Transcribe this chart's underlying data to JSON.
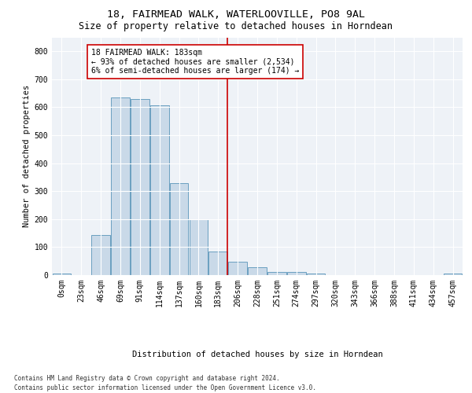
{
  "title": "18, FAIRMEAD WALK, WATERLOOVILLE, PO8 9AL",
  "subtitle": "Size of property relative to detached houses in Horndean",
  "xlabel_bottom": "Distribution of detached houses by size in Horndean",
  "ylabel": "Number of detached properties",
  "footnote1": "Contains HM Land Registry data © Crown copyright and database right 2024.",
  "footnote2": "Contains public sector information licensed under the Open Government Licence v3.0.",
  "bar_labels": [
    "0sqm",
    "23sqm",
    "46sqm",
    "69sqm",
    "91sqm",
    "114sqm",
    "137sqm",
    "160sqm",
    "183sqm",
    "206sqm",
    "228sqm",
    "251sqm",
    "274sqm",
    "297sqm",
    "320sqm",
    "343sqm",
    "366sqm",
    "388sqm",
    "411sqm",
    "434sqm",
    "457sqm"
  ],
  "bar_values": [
    5,
    0,
    143,
    636,
    630,
    608,
    330,
    200,
    83,
    48,
    28,
    10,
    10,
    5,
    0,
    0,
    0,
    0,
    0,
    0,
    5
  ],
  "bar_color": "#c9d9e8",
  "bar_edge_color": "#6a9fc0",
  "highlight_line_color": "#cc0000",
  "annotation_text": "18 FAIRMEAD WALK: 183sqm\n← 93% of detached houses are smaller (2,534)\n6% of semi-detached houses are larger (174) →",
  "annotation_box_color": "#cc0000",
  "ylim": [
    0,
    850
  ],
  "yticks": [
    0,
    100,
    200,
    300,
    400,
    500,
    600,
    700,
    800
  ],
  "bg_color": "#eef2f7",
  "grid_color": "#ffffff",
  "title_fontsize": 9.5,
  "subtitle_fontsize": 8.5,
  "axis_label_fontsize": 7.5,
  "tick_fontsize": 7,
  "annotation_fontsize": 7,
  "footnote_fontsize": 5.5,
  "xlabel_bottom_fontsize": 7.5
}
